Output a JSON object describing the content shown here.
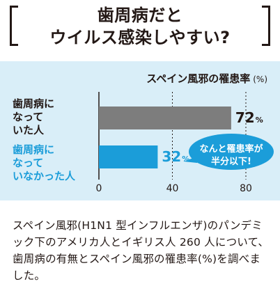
{
  "header": {
    "title_line1": "歯周病だと",
    "title_line2": "ウイルス感染しやすい?"
  },
  "chart_data": {
    "type": "bar",
    "orientation": "horizontal",
    "title": "スペイン風邪の罹患率",
    "unit_label": "(%)",
    "categories": [
      "歯周病に\nなって\nいた人",
      "歯周病に\nなって\nいなかった人"
    ],
    "values": [
      72,
      32
    ],
    "value_labels": [
      "72",
      "32"
    ],
    "value_suffix": "%",
    "xticks": [
      "0",
      "40",
      "80"
    ],
    "xlim": [
      0,
      80
    ],
    "colors": [
      "#7d7d7d",
      "#1b9dd9"
    ],
    "label_colors": [
      "#231815",
      "#1b9dd9"
    ],
    "callout": [
      "なんと罹患率が",
      "半分以下!"
    ],
    "callout_color": "#1b9dd9",
    "panel_color": "#d9eef8"
  },
  "body": {
    "text": "スペイン風邪(H1N1 型インフルエンザ)のパンデミック下のアメリカ人とイギリス人 260 人について、歯周病の有無とスペイン風邪の罹患率(%)を調べました。"
  }
}
